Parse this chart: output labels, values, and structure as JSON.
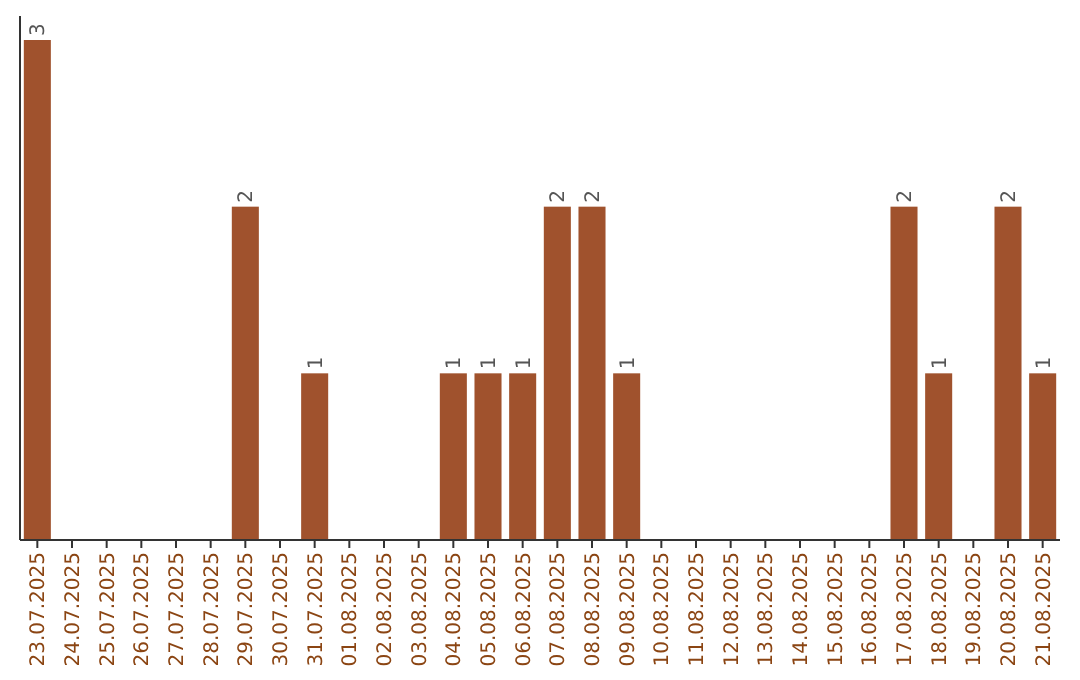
{
  "chart_data": {
    "type": "bar",
    "categories": [
      "23.07.2025",
      "24.07.2025",
      "25.07.2025",
      "26.07.2025",
      "27.07.2025",
      "28.07.2025",
      "29.07.2025",
      "30.07.2025",
      "31.07.2025",
      "01.08.2025",
      "02.08.2025",
      "03.08.2025",
      "04.08.2025",
      "05.08.2025",
      "06.08.2025",
      "07.08.2025",
      "08.08.2025",
      "09.08.2025",
      "10.08.2025",
      "11.08.2025",
      "12.08.2025",
      "13.08.2025",
      "14.08.2025",
      "15.08.2025",
      "16.08.2025",
      "17.08.2025",
      "18.08.2025",
      "19.08.2025",
      "20.08.2025",
      "21.08.2025"
    ],
    "values": [
      3,
      0,
      0,
      0,
      0,
      0,
      2,
      0,
      1,
      0,
      0,
      0,
      1,
      1,
      1,
      2,
      2,
      1,
      0,
      0,
      0,
      0,
      0,
      0,
      0,
      2,
      1,
      0,
      2,
      1
    ],
    "value_labels": [
      "3",
      null,
      null,
      null,
      null,
      null,
      "2",
      null,
      "1",
      null,
      null,
      null,
      "1",
      "1",
      "1",
      "2",
      "2",
      "1",
      null,
      null,
      null,
      null,
      null,
      null,
      null,
      "2",
      "1",
      null,
      "2",
      "1"
    ],
    "color": "#a0522d"
  }
}
